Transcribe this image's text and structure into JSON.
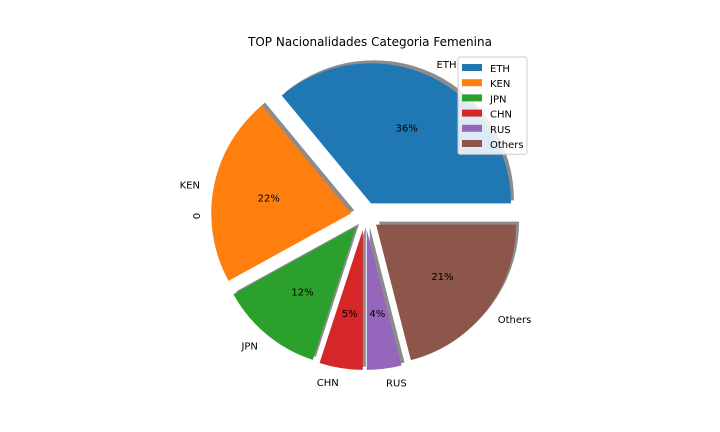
{
  "chart_data": {
    "type": "pie",
    "title": "TOP Nacionalidades Categoria Femenina",
    "ylabel": "0",
    "slices": [
      {
        "label": "ETH",
        "pct_label": "36%",
        "value": 36,
        "color": "#1f77b4"
      },
      {
        "label": "KEN",
        "pct_label": "22%",
        "value": 22,
        "color": "#ff7f0e"
      },
      {
        "label": "JPN",
        "pct_label": "12%",
        "value": 12,
        "color": "#2ca02c"
      },
      {
        "label": "CHN",
        "pct_label": "5%",
        "value": 5,
        "color": "#d62728"
      },
      {
        "label": "RUS",
        "pct_label": "4%",
        "value": 4,
        "color": "#9467bd"
      },
      {
        "label": "Others",
        "pct_label": "21%",
        "value": 21,
        "color": "#8c564b"
      }
    ],
    "legend": {
      "placement": "top-right"
    },
    "shadow": true,
    "exploded": true
  }
}
